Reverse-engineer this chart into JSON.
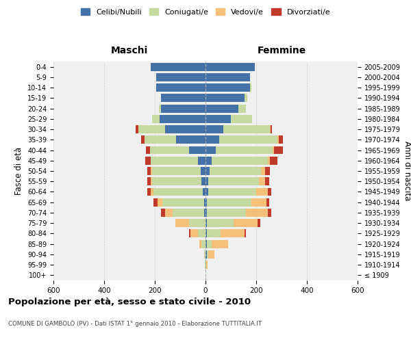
{
  "age_groups": [
    "100+",
    "95-99",
    "90-94",
    "85-89",
    "80-84",
    "75-79",
    "70-74",
    "65-69",
    "60-64",
    "55-59",
    "50-54",
    "45-49",
    "40-44",
    "35-39",
    "30-34",
    "25-29",
    "20-24",
    "15-19",
    "10-14",
    "5-9",
    "0-4"
  ],
  "birth_years": [
    "≤ 1909",
    "1910-1914",
    "1915-1919",
    "1920-1924",
    "1925-1929",
    "1930-1934",
    "1935-1939",
    "1940-1944",
    "1945-1949",
    "1950-1954",
    "1955-1959",
    "1960-1964",
    "1965-1969",
    "1970-1974",
    "1975-1979",
    "1980-1984",
    "1985-1989",
    "1990-1994",
    "1995-1999",
    "2000-2004",
    "2005-2009"
  ],
  "males": {
    "celibe": [
      0,
      0,
      0,
      0,
      0,
      0,
      5,
      5,
      10,
      15,
      20,
      30,
      65,
      115,
      160,
      180,
      175,
      175,
      195,
      195,
      215
    ],
    "coniugato": [
      0,
      2,
      5,
      15,
      30,
      65,
      125,
      165,
      195,
      195,
      190,
      185,
      155,
      125,
      105,
      30,
      10,
      2,
      0,
      0,
      0
    ],
    "vedovo": [
      0,
      0,
      0,
      10,
      30,
      55,
      30,
      20,
      10,
      5,
      5,
      2,
      0,
      0,
      0,
      0,
      0,
      0,
      0,
      0,
      0
    ],
    "divorziato": [
      0,
      0,
      0,
      0,
      5,
      0,
      15,
      15,
      15,
      15,
      15,
      20,
      15,
      15,
      10,
      0,
      0,
      0,
      0,
      0,
      0
    ]
  },
  "females": {
    "nubile": [
      0,
      0,
      5,
      5,
      5,
      5,
      5,
      5,
      10,
      10,
      15,
      25,
      40,
      55,
      70,
      100,
      130,
      155,
      175,
      175,
      195
    ],
    "coniugata": [
      0,
      2,
      5,
      20,
      55,
      105,
      155,
      175,
      190,
      200,
      205,
      220,
      225,
      230,
      185,
      85,
      30,
      10,
      5,
      0,
      0
    ],
    "vedova": [
      0,
      5,
      25,
      65,
      95,
      95,
      85,
      60,
      45,
      25,
      15,
      10,
      5,
      5,
      2,
      0,
      0,
      0,
      0,
      0,
      0
    ],
    "divorziata": [
      0,
      0,
      0,
      0,
      5,
      10,
      15,
      10,
      15,
      15,
      20,
      30,
      35,
      15,
      5,
      0,
      0,
      0,
      0,
      0,
      0
    ]
  },
  "colors": {
    "celibe": "#4472a8",
    "coniugato": "#c5d9a0",
    "vedovo": "#f4c07a",
    "divorziato": "#c0392b"
  },
  "xlim": 600,
  "title": "Popolazione per età, sesso e stato civile - 2010",
  "subtitle": "COMUNE DI GAMBOLÒ (PV) - Dati ISTAT 1° gennaio 2010 - Elaborazione TUTTITALIA.IT",
  "xlabel_left": "Maschi",
  "xlabel_right": "Femmine",
  "ylabel_left": "Fasce di età",
  "ylabel_right": "Anni di nascita",
  "legend_labels": [
    "Celibi/Nubili",
    "Coniugati/e",
    "Vedovi/e",
    "Divorziati/e"
  ],
  "bg_color": "#ffffff",
  "grid_color": "#cccccc",
  "bar_height": 0.78
}
